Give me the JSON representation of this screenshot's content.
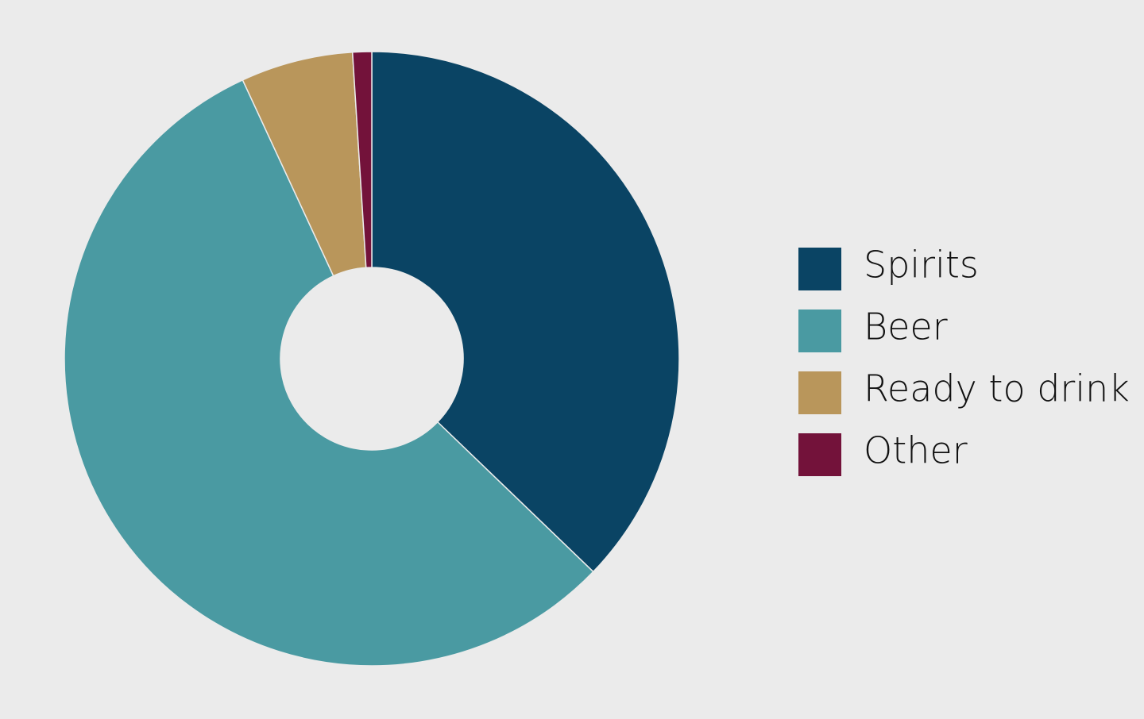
{
  "chart_data": {
    "type": "donut",
    "categories": [
      "Spirits",
      "Beer",
      "Ready to drink",
      "Other"
    ],
    "values": [
      37.2,
      55.9,
      5.9,
      1.0
    ],
    "colors": [
      "#0a4464",
      "#4a9aa2",
      "#b9965b",
      "#73123a"
    ],
    "legend": "right"
  }
}
